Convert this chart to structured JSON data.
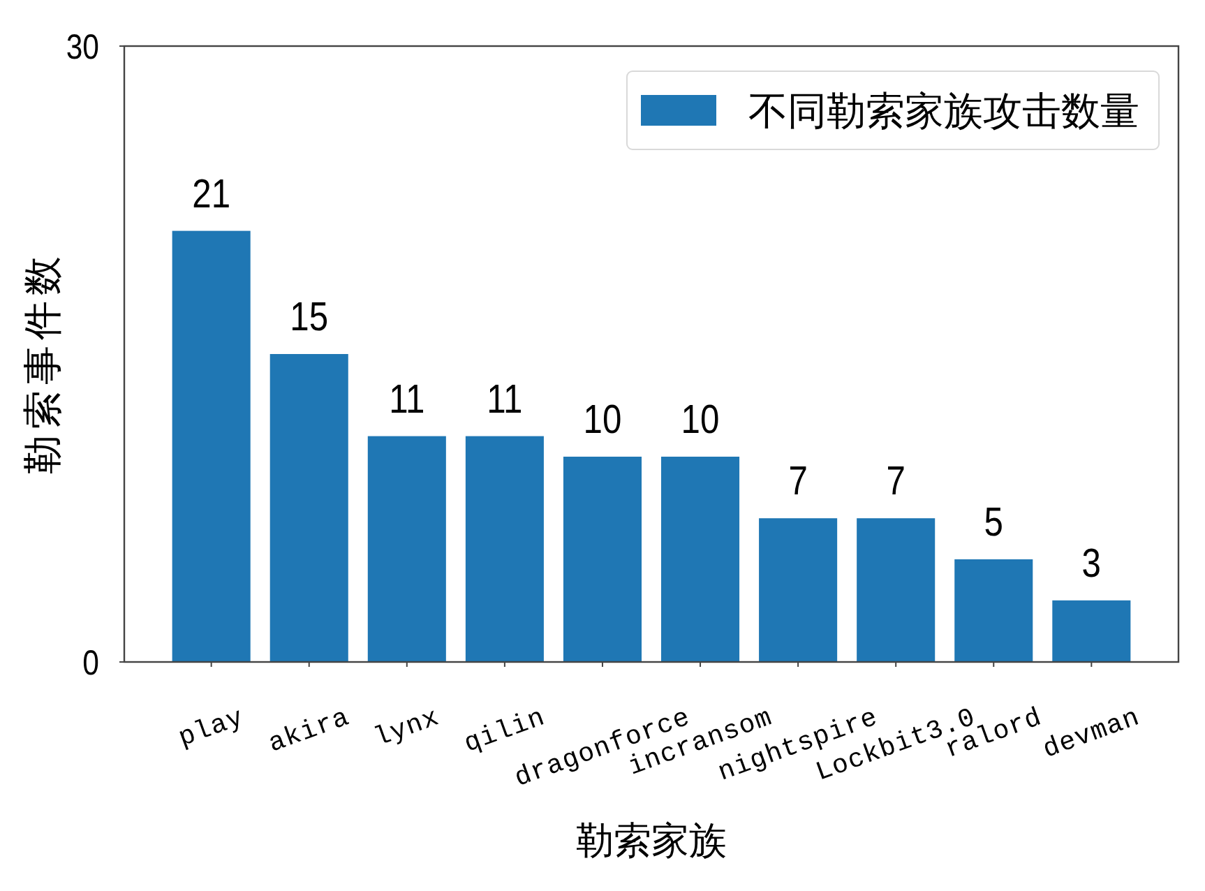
{
  "chart_data": {
    "type": "bar",
    "xlabel": "勒索家族",
    "ylabel": "勒索事件数",
    "categories": [
      "play",
      "akira",
      "lynx",
      "qilin",
      "dragonforce",
      "incransom",
      "nightspire",
      "Lockbit3.0",
      "ralord",
      "devman"
    ],
    "series": [
      {
        "name": "不同勒索家族攻击数量",
        "color": "#1f77b4",
        "values": [
          21,
          15,
          11,
          11,
          10,
          10,
          7,
          7,
          5,
          3
        ]
      }
    ],
    "ylim": [
      0,
      30
    ],
    "yticks": [
      0,
      30
    ],
    "data_labels": true,
    "legend": "top right"
  }
}
